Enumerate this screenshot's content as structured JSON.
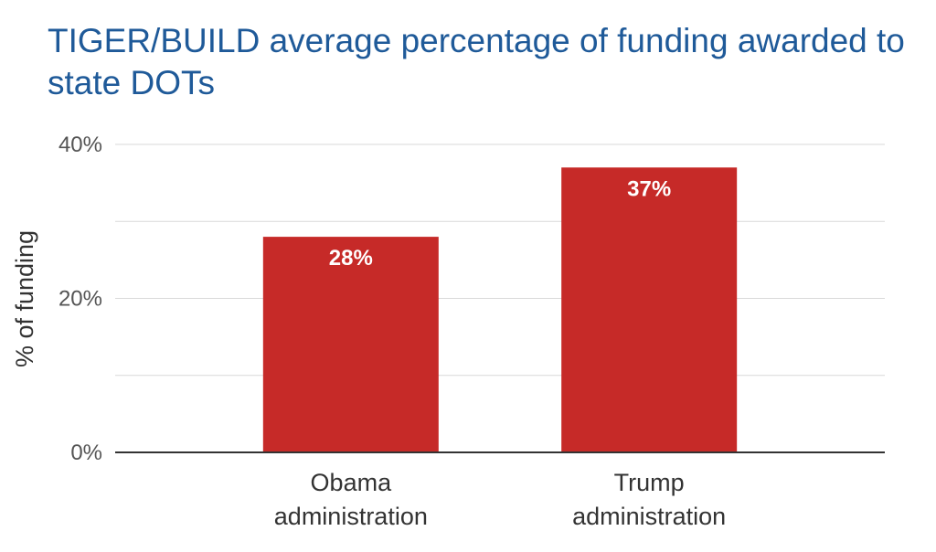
{
  "chart_data": {
    "type": "bar",
    "title": "TIGER/BUILD average percentage of funding awarded to state DOTs",
    "ylabel": "% of funding",
    "xlabel": "",
    "categories": [
      [
        "Obama",
        "administration"
      ],
      [
        "Trump",
        "administration"
      ]
    ],
    "values": [
      28,
      37
    ],
    "value_labels": [
      "28%",
      "37%"
    ],
    "ylim": [
      0,
      40
    ],
    "yticks": [
      0,
      20,
      40
    ],
    "ytick_labels": [
      "0%",
      "20%",
      "40%"
    ],
    "minor_gridlines": [
      10,
      30
    ],
    "grid": true,
    "bar_color": "#c62a28",
    "title_color": "#1f5a99"
  }
}
